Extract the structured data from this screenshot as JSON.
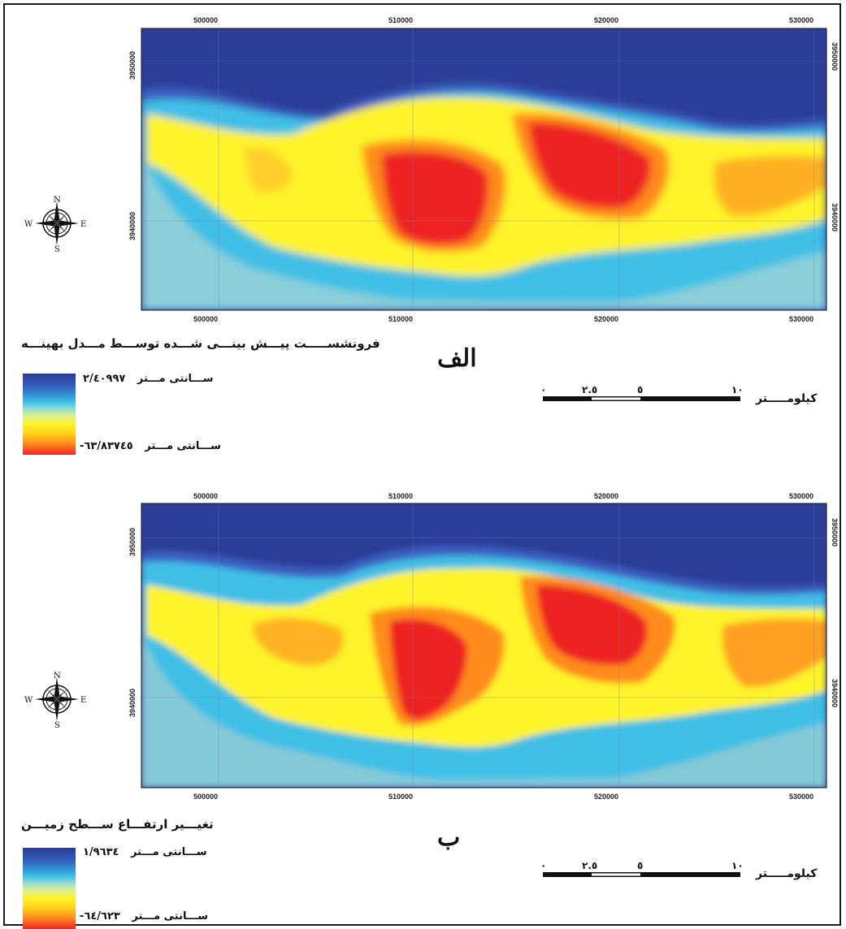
{
  "panels": [
    {
      "id": "alef",
      "title": "فرونشســـــت پیـــش بینـــی شـــده توســـط مـــدل بهینـــه",
      "letter": "الف",
      "x_ticks": [
        "500000",
        "510000",
        "520000",
        "530000"
      ],
      "y_ticks": [
        "3950000",
        "3940000"
      ],
      "legend_high": "۲/٤٠٩٩٧",
      "legend_low": "-٦٣/٨٣٧٤٥",
      "legend_unit": "ســـانتی مـــتر",
      "scale_labels": [
        "٠",
        "٢.٥",
        "٥",
        "١٠"
      ],
      "scale_unit": "کیلومـــــتر",
      "compass": {
        "n": "N",
        "s": "S",
        "e": "E",
        "w": "W"
      }
    },
    {
      "id": "be",
      "title": "تغیـــیر ارتفـــاع ســـطح زمیـــن",
      "letter": "ب",
      "x_ticks": [
        "500000",
        "510000",
        "520000",
        "530000"
      ],
      "y_ticks": [
        "3950000",
        "3940000"
      ],
      "legend_high": "۱/۹٦۳٤",
      "legend_low": "-٦٤/٦٢٣",
      "legend_unit": "ســـانتی مـــتر",
      "scale_labels": [
        "٠",
        "٢.٥",
        "٥",
        "١٠"
      ],
      "scale_unit": "کیلومـــــتر",
      "compass": {
        "n": "N",
        "s": "S",
        "e": "E",
        "w": "W"
      }
    }
  ],
  "colors": {
    "deep_blue": "#2b3d97",
    "blue": "#3458b8",
    "cyan": "#3fbfe6",
    "pale": "#a8dcc6",
    "yellow": "#fff32a",
    "orange": "#ff9a1c",
    "red": "#ee2424"
  }
}
